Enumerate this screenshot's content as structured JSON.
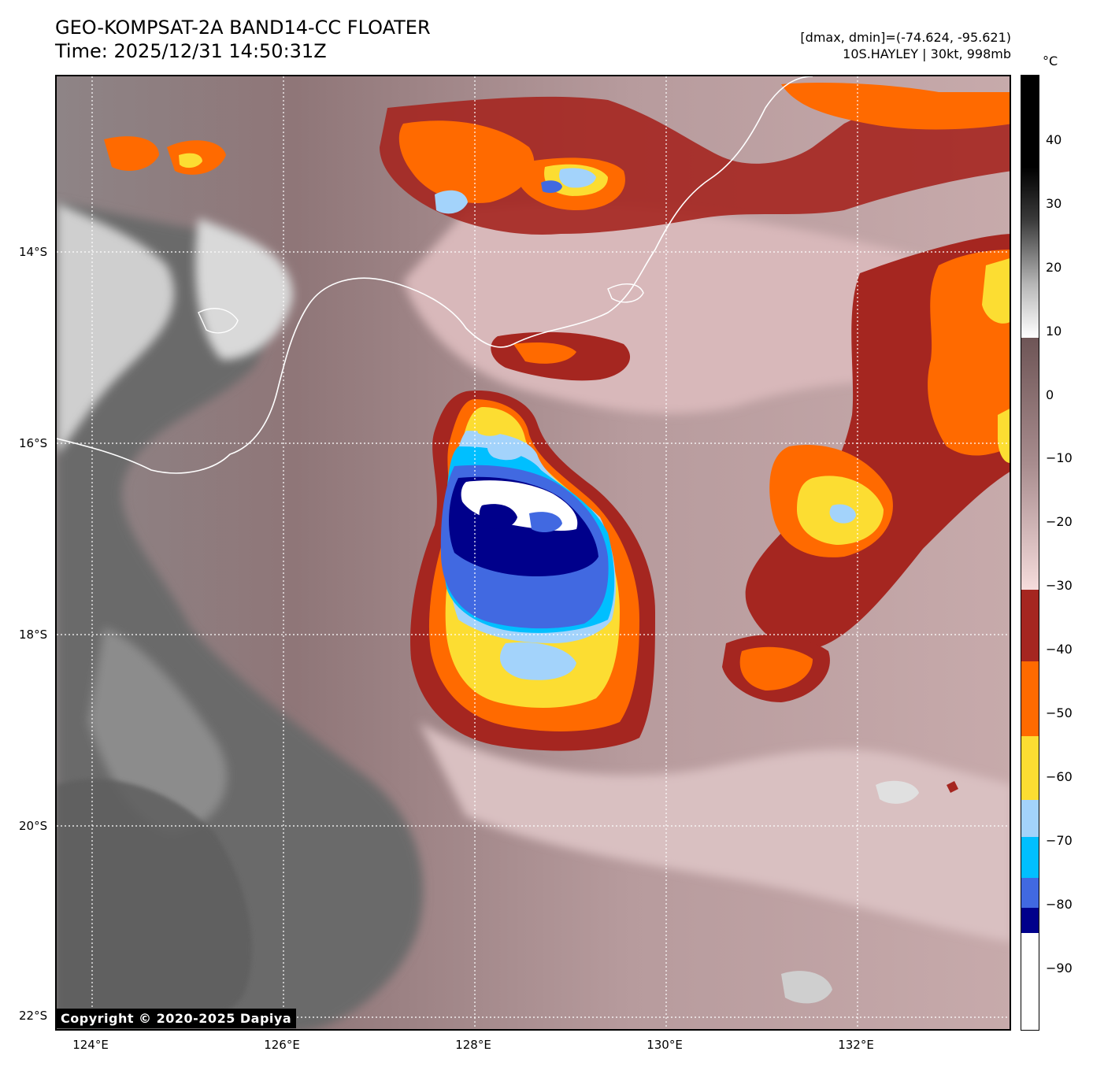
{
  "header": {
    "title": "GEO-KOMPSAT-2A BAND14-CC FLOATER",
    "time": "Time: 2025/12/31 14:50:31Z",
    "range": "[dmax, dmin]=(-74.624, -95.621)",
    "storm": "10S.HAYLEY | 30kt, 998mb"
  },
  "map": {
    "lat_ticks": [
      "14°S",
      "16°S",
      "18°S",
      "20°S",
      "22°S"
    ],
    "lon_ticks": [
      "124°E",
      "126°E",
      "128°E",
      "130°E",
      "132°E"
    ],
    "copyright": "Copyright © 2020-2025 Dapiya"
  },
  "colorbar": {
    "unit": "°C",
    "ticks": [
      "40",
      "30",
      "20",
      "10",
      "0",
      "−10",
      "−20",
      "−30",
      "−40",
      "−50",
      "−60",
      "−70",
      "−80",
      "−90"
    ]
  },
  "colors": {
    "dark_red": "#a52620",
    "orange": "#ff6a00",
    "yellow": "#fcdd32",
    "light_blue": "#a3d3fb",
    "cyan": "#00bfff",
    "blue": "#4169e1",
    "navy": "#00008b",
    "white": "#ffffff",
    "pink": "#f2d2d2",
    "land_gray": "#6e6e6e"
  }
}
